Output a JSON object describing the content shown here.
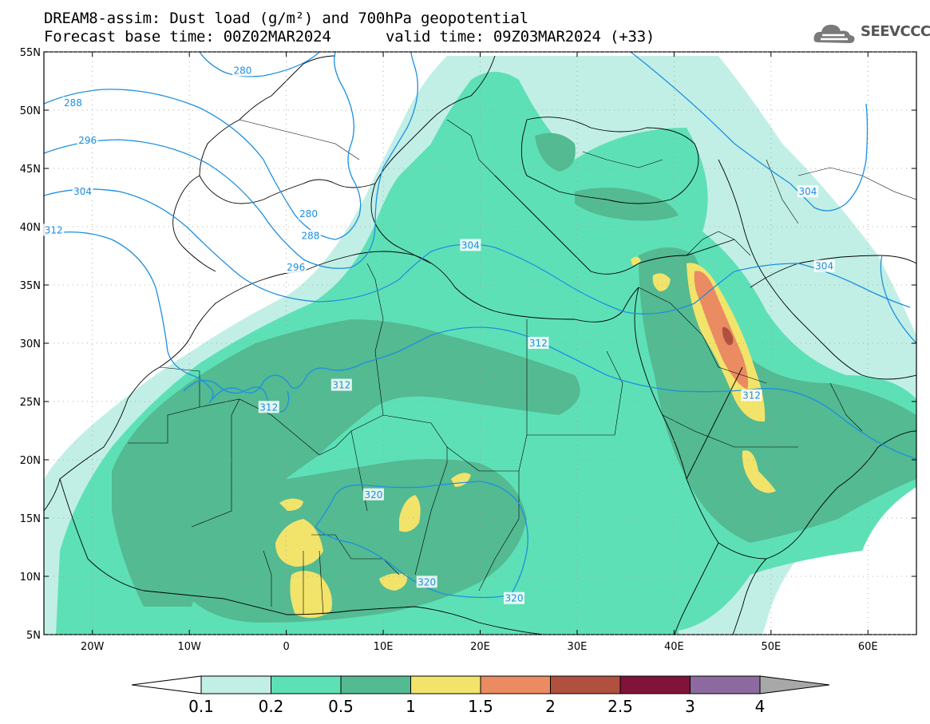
{
  "header": {
    "title": "DREAM8-assim: Dust load (g/m²) and 700hPa geopotential",
    "base_time": "Forecast base time: 00Z02MAR2024",
    "valid_time": "valid time: 09Z03MAR2024 (+33)"
  },
  "logo": {
    "text": "SEEVCCC",
    "icon": "cloud-logo-icon"
  },
  "map": {
    "lon_range": [
      -25,
      65
    ],
    "lat_range": [
      5,
      55
    ],
    "lon_ticks": [
      {
        "value": -20,
        "label": "20W"
      },
      {
        "value": -10,
        "label": "10W"
      },
      {
        "value": 0,
        "label": "0"
      },
      {
        "value": 10,
        "label": "10E"
      },
      {
        "value": 20,
        "label": "20E"
      },
      {
        "value": 30,
        "label": "30E"
      },
      {
        "value": 40,
        "label": "40E"
      },
      {
        "value": 50,
        "label": "50E"
      },
      {
        "value": 60,
        "label": "60E"
      }
    ],
    "lat_ticks": [
      {
        "value": 55,
        "label": "55N"
      },
      {
        "value": 50,
        "label": "50N"
      },
      {
        "value": 45,
        "label": "45N"
      },
      {
        "value": 40,
        "label": "40N"
      },
      {
        "value": 35,
        "label": "35N"
      },
      {
        "value": 30,
        "label": "30N"
      },
      {
        "value": 25,
        "label": "25N"
      },
      {
        "value": 20,
        "label": "20N"
      },
      {
        "value": 15,
        "label": "15N"
      },
      {
        "value": 10,
        "label": "10N"
      },
      {
        "value": 5,
        "label": "5N"
      }
    ],
    "contour_labels": [
      {
        "text": "280",
        "lon": -4.5,
        "lat": 53.4
      },
      {
        "text": "288",
        "lon": -22,
        "lat": 50.6
      },
      {
        "text": "296",
        "lon": -20.5,
        "lat": 47.4
      },
      {
        "text": "304",
        "lon": -21,
        "lat": 43.0
      },
      {
        "text": "312",
        "lon": -24,
        "lat": 39.7
      },
      {
        "text": "280",
        "lon": 2.3,
        "lat": 41.1
      },
      {
        "text": "288",
        "lon": 2.5,
        "lat": 39.2
      },
      {
        "text": "296",
        "lon": 1,
        "lat": 36.5
      },
      {
        "text": "304",
        "lon": 19,
        "lat": 38.4
      },
      {
        "text": "304",
        "lon": 53.8,
        "lat": 43.0
      },
      {
        "text": "304",
        "lon": 55.5,
        "lat": 36.6
      },
      {
        "text": "312",
        "lon": 5.7,
        "lat": 26.4
      },
      {
        "text": "312",
        "lon": -1.8,
        "lat": 24.5
      },
      {
        "text": "312",
        "lon": 26,
        "lat": 30.0
      },
      {
        "text": "312",
        "lon": 48,
        "lat": 25.5
      },
      {
        "text": "320",
        "lon": 9,
        "lat": 17.0
      },
      {
        "text": "320",
        "lon": 14.5,
        "lat": 9.5
      },
      {
        "text": "320",
        "lon": 23.5,
        "lat": 8.1
      }
    ]
  },
  "colorbar": {
    "levels": [
      "0.1",
      "0.2",
      "0.5",
      "1",
      "1.5",
      "2",
      "2.5",
      "3",
      "4"
    ],
    "colors": [
      "#c1efe6",
      "#5ee0b6",
      "#53ba92",
      "#f2e36b",
      "#ea8b62",
      "#b2503f",
      "#80133a",
      "#8c6aa0"
    ],
    "under_color": "#ffffff",
    "over_color": "#a8a8a8"
  },
  "colors": {
    "land_border": "#000000",
    "contour": "#1e8fe0",
    "dust_0_1": "#c1efe6",
    "dust_0_2": "#5ee0b6",
    "dust_0_5": "#53ba92",
    "dust_1": "#f2e36b",
    "dust_1_5": "#ea8b62",
    "dust_2": "#b2503f"
  }
}
